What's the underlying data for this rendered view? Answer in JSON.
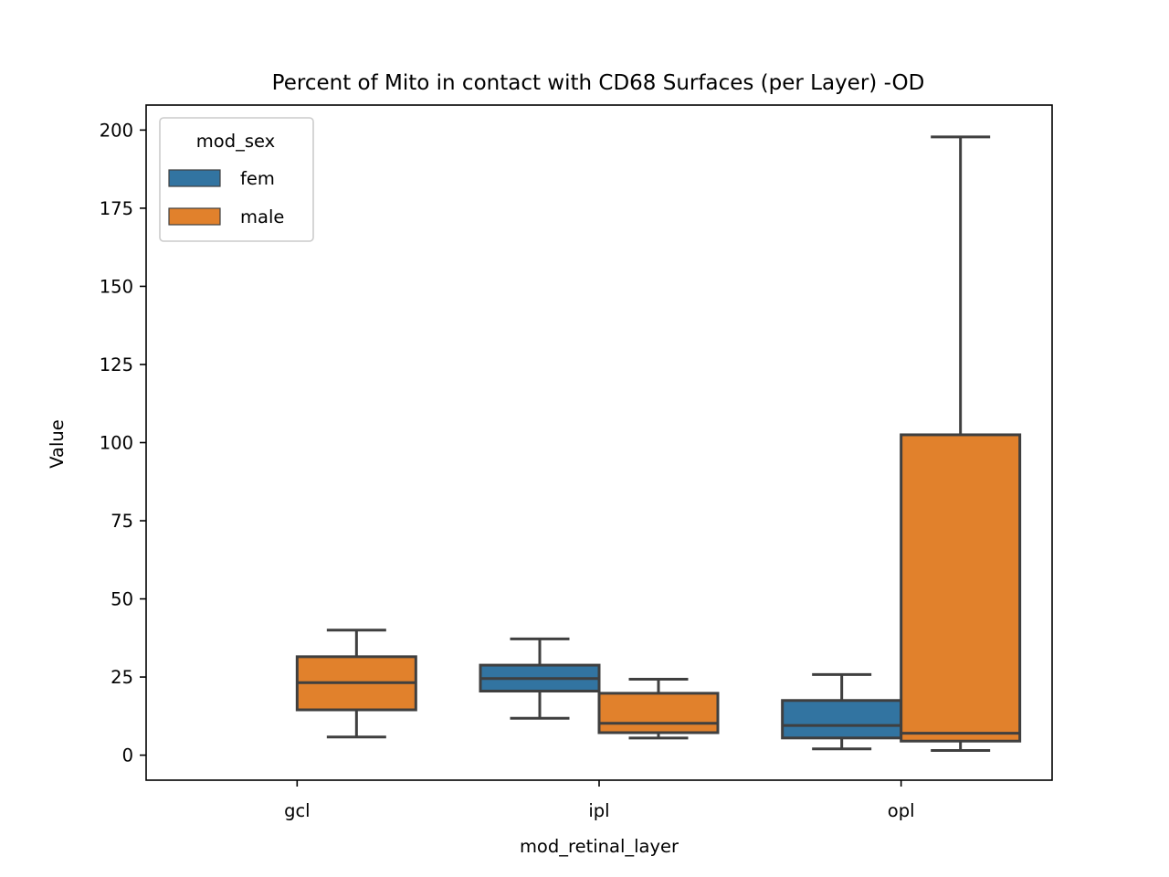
{
  "chart_data": {
    "type": "box",
    "title": "Percent of Mito in contact with CD68 Surfaces (per Layer) -OD",
    "xlabel": "mod_retinal_layer",
    "ylabel": "Value",
    "categories": [
      "gcl",
      "ipl",
      "opl"
    ],
    "ylim": [
      -8,
      208
    ],
    "yticks": [
      0,
      25,
      50,
      75,
      100,
      125,
      150,
      175,
      200
    ],
    "grid": false,
    "legend": {
      "title": "mod_sex",
      "placement": "top-left",
      "entries": [
        {
          "label": "fem",
          "color": "#3274a1"
        },
        {
          "label": "male",
          "color": "#e1812c"
        }
      ]
    },
    "series": [
      {
        "name": "fem",
        "color": "#3274a1",
        "boxes": [
          null,
          {
            "whislo": 11.8,
            "q1": 20.5,
            "med": 24.5,
            "q3": 28.8,
            "whishi": 37.2
          },
          {
            "whislo": 2.0,
            "q1": 5.5,
            "med": 9.5,
            "q3": 17.5,
            "whishi": 25.8
          }
        ]
      },
      {
        "name": "male",
        "color": "#e1812c",
        "boxes": [
          {
            "whislo": 5.8,
            "q1": 14.5,
            "med": 23.2,
            "q3": 31.5,
            "whishi": 40.0
          },
          {
            "whislo": 5.5,
            "q1": 7.2,
            "med": 10.2,
            "q3": 19.8,
            "whishi": 24.3
          },
          {
            "whislo": 1.5,
            "q1": 4.5,
            "med": 7.0,
            "q3": 102.5,
            "whishi": 197.8
          }
        ]
      }
    ]
  },
  "colors": {
    "line": "#3f3f3f",
    "axis": "#000000"
  }
}
